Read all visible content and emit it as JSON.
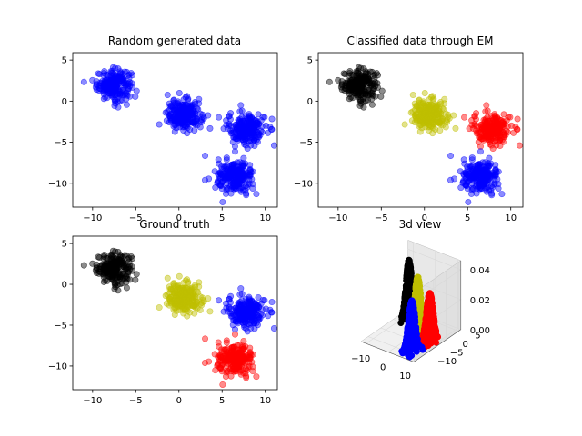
{
  "chart_data": [
    {
      "type": "scatter",
      "title": "Random generated data",
      "xlim": [
        -12.3,
        11.4
      ],
      "ylim": [
        -12.9,
        5.9
      ],
      "xticks": [
        -10,
        -5,
        0,
        5,
        10
      ],
      "yticks": [
        -10,
        -5,
        0,
        5
      ],
      "xtick_labels": [
        "−10",
        "−5",
        "0",
        "5",
        "10"
      ],
      "ytick_labels": [
        "−10",
        "−5",
        "0",
        "5"
      ],
      "series": [
        {
          "color": "#0000ff",
          "center": [
            -7.5,
            2.0
          ],
          "spread": [
            1.0,
            0.9
          ],
          "n": 220
        },
        {
          "color": "#0000ff",
          "center": [
            0.6,
            -1.7
          ],
          "spread": [
            1.0,
            0.9
          ],
          "n": 220
        },
        {
          "color": "#0000ff",
          "center": [
            7.8,
            -3.3
          ],
          "spread": [
            1.1,
            1.0
          ],
          "n": 220
        },
        {
          "color": "#0000ff",
          "center": [
            6.5,
            -9.3
          ],
          "spread": [
            1.1,
            1.0
          ],
          "n": 220
        }
      ]
    },
    {
      "type": "scatter",
      "title": "Classified data through EM",
      "xlim": [
        -12.3,
        11.4
      ],
      "ylim": [
        -12.9,
        5.9
      ],
      "xticks": [
        -10,
        -5,
        0,
        5,
        10
      ],
      "yticks": [
        -10,
        -5,
        0,
        5
      ],
      "xtick_labels": [
        "−10",
        "−5",
        "0",
        "5",
        "10"
      ],
      "ytick_labels": [
        "−10",
        "−5",
        "0",
        "5"
      ],
      "series": [
        {
          "color": "#000000",
          "center": [
            -7.5,
            2.0
          ],
          "spread": [
            1.0,
            0.9
          ],
          "n": 220
        },
        {
          "color": "#bfbf00",
          "center": [
            0.6,
            -1.7
          ],
          "spread": [
            1.0,
            0.9
          ],
          "n": 220
        },
        {
          "color": "#ff0000",
          "center": [
            7.8,
            -3.3
          ],
          "spread": [
            1.1,
            1.0
          ],
          "n": 220
        },
        {
          "color": "#0000ff",
          "center": [
            6.5,
            -9.3
          ],
          "spread": [
            1.1,
            1.0
          ],
          "n": 220
        }
      ]
    },
    {
      "type": "scatter",
      "title": "Ground truth",
      "xlim": [
        -12.3,
        11.4
      ],
      "ylim": [
        -12.9,
        5.9
      ],
      "xticks": [
        -10,
        -5,
        0,
        5,
        10
      ],
      "yticks": [
        -10,
        -5,
        0,
        5
      ],
      "xtick_labels": [
        "−10",
        "−5",
        "0",
        "5",
        "10"
      ],
      "ytick_labels": [
        "−10",
        "−5",
        "0",
        "5"
      ],
      "series": [
        {
          "color": "#000000",
          "center": [
            -7.5,
            2.0
          ],
          "spread": [
            1.0,
            0.9
          ],
          "n": 220
        },
        {
          "color": "#bfbf00",
          "center": [
            0.6,
            -1.7
          ],
          "spread": [
            1.0,
            0.9
          ],
          "n": 220
        },
        {
          "color": "#0000ff",
          "center": [
            7.8,
            -3.3
          ],
          "spread": [
            1.1,
            1.0
          ],
          "n": 220
        },
        {
          "color": "#ff0000",
          "center": [
            6.5,
            -9.3
          ],
          "spread": [
            1.1,
            1.0
          ],
          "n": 220
        }
      ]
    },
    {
      "type": "scatter3d",
      "title": "3d view",
      "xticks": [
        -10,
        0,
        10
      ],
      "yticks": [
        -10,
        -5,
        0,
        5
      ],
      "zticks": [
        0.0,
        0.02,
        0.04
      ],
      "xtick_labels": [
        "−10",
        "0",
        "10"
      ],
      "ytick_labels": [
        "−10",
        "−5",
        "0",
        "5"
      ],
      "ztick_labels": [
        "0.00",
        "0.02",
        "0.04"
      ],
      "xlim": [
        -12.3,
        11.4
      ],
      "ylim": [
        -12.9,
        5.9
      ],
      "zlim": [
        0,
        0.046
      ],
      "series": [
        {
          "color": "#000000",
          "center": [
            -7.5,
            2.0
          ],
          "spread": [
            1.0,
            0.9
          ],
          "peak": 0.04,
          "n": 260
        },
        {
          "color": "#bfbf00",
          "center": [
            0.6,
            -1.7
          ],
          "spread": [
            1.0,
            0.9
          ],
          "peak": 0.038,
          "n": 260
        },
        {
          "color": "#ff0000",
          "center": [
            7.8,
            -3.3
          ],
          "spread": [
            1.1,
            1.0
          ],
          "peak": 0.033,
          "n": 260
        },
        {
          "color": "#0000ff",
          "center": [
            6.5,
            -9.3
          ],
          "spread": [
            1.1,
            1.0
          ],
          "peak": 0.034,
          "n": 260
        }
      ]
    }
  ]
}
